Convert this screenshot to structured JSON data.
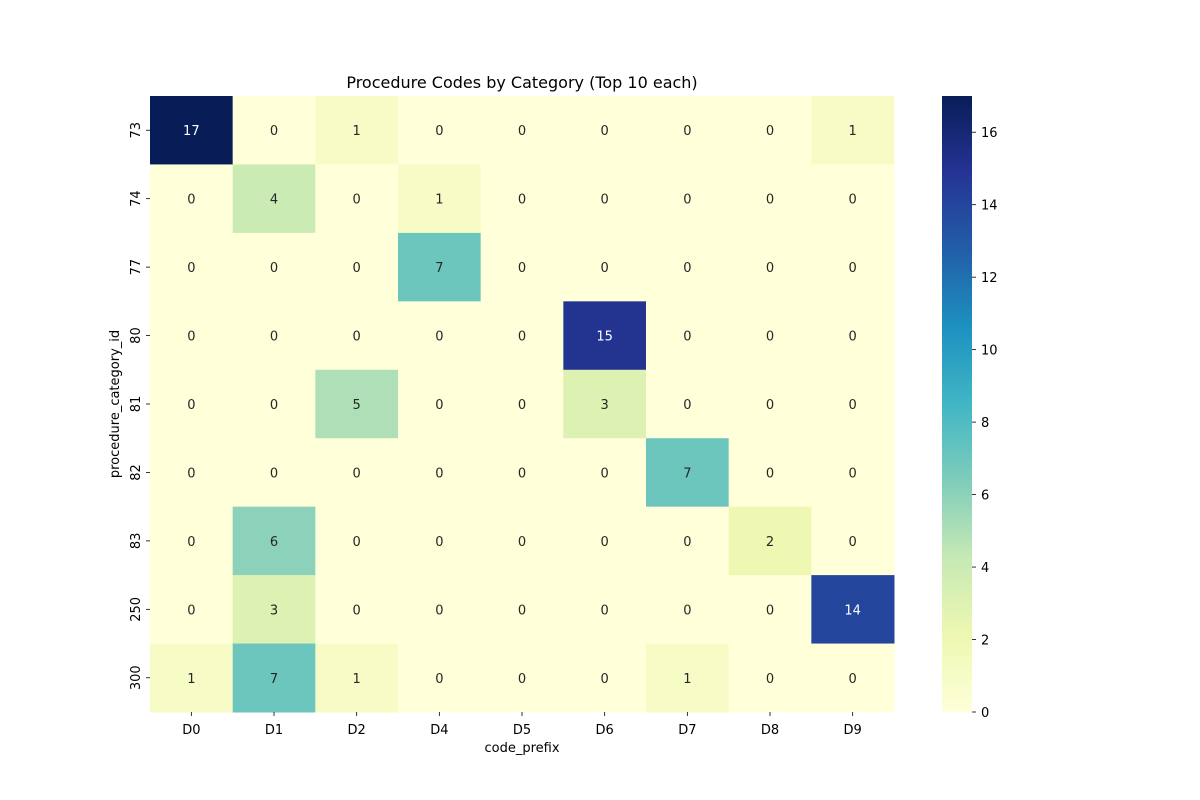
{
  "chart_data": {
    "type": "heatmap",
    "title": "Procedure Codes by Category (Top 10 each)",
    "xlabel": "code_prefix",
    "ylabel": "procedure_category_id",
    "x_categories": [
      "D0",
      "D1",
      "D2",
      "D4",
      "D5",
      "D6",
      "D7",
      "D8",
      "D9"
    ],
    "y_categories": [
      "73",
      "74",
      "77",
      "80",
      "81",
      "82",
      "83",
      "250",
      "300"
    ],
    "values": [
      [
        17,
        0,
        1,
        0,
        0,
        0,
        0,
        0,
        1
      ],
      [
        0,
        4,
        0,
        1,
        0,
        0,
        0,
        0,
        0
      ],
      [
        0,
        0,
        0,
        7,
        0,
        0,
        0,
        0,
        0
      ],
      [
        0,
        0,
        0,
        0,
        0,
        15,
        0,
        0,
        0
      ],
      [
        0,
        0,
        5,
        0,
        0,
        3,
        0,
        0,
        0
      ],
      [
        0,
        0,
        0,
        0,
        0,
        0,
        7,
        0,
        0
      ],
      [
        0,
        6,
        0,
        0,
        0,
        0,
        0,
        2,
        0
      ],
      [
        0,
        3,
        0,
        0,
        0,
        0,
        0,
        0,
        14
      ],
      [
        1,
        7,
        1,
        0,
        0,
        0,
        1,
        0,
        0
      ]
    ],
    "colormap": "YlGnBu",
    "vmin": 0,
    "vmax": 17,
    "colorbar_ticks": [
      0,
      2,
      4,
      6,
      8,
      10,
      12,
      14,
      16
    ],
    "annotated": true
  }
}
